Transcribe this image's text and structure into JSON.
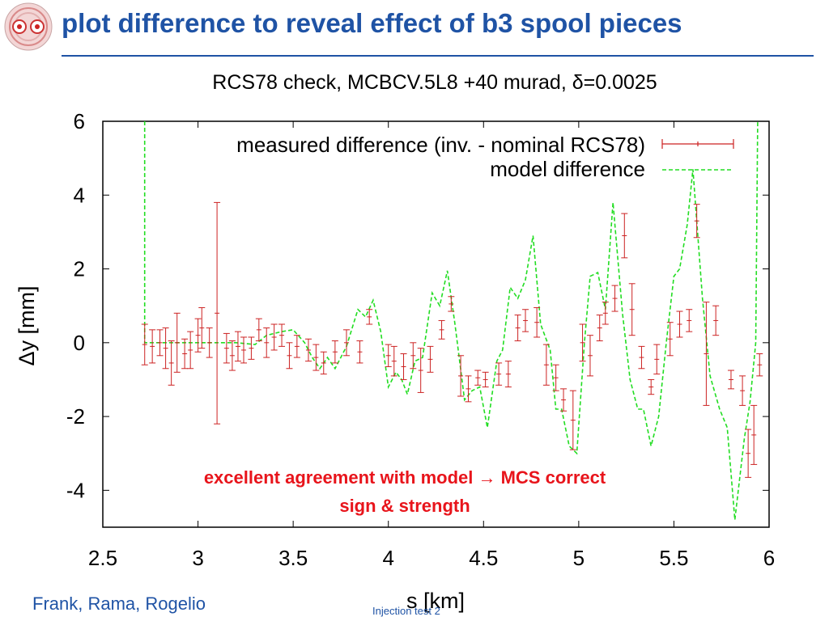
{
  "slide": {
    "title": "plot difference to reveal effect of b3 spool pieces",
    "authors": "Frank, Rama, Rogelio",
    "footer": "Injection test 2"
  },
  "logo": {
    "icon": "lhc-magnet-cross-section-icon"
  },
  "colors": {
    "title": "#1f53a5",
    "measured": "#cc2222",
    "model": "#22dd22",
    "annotation": "#e8141b"
  },
  "annotation": {
    "line1": "excellent agreement with model → MCS correct",
    "line2": "sign & strength"
  },
  "chart_data": {
    "type": "line",
    "title": "RCS78 check, MCBCV.5L8 +40 murad, δ=0.0025",
    "xlabel": "s [km]",
    "ylabel": "Δy [mm]",
    "xlim": [
      2.5,
      6
    ],
    "ylim": [
      -5,
      6
    ],
    "xticks": [
      "2.5",
      "3",
      "3.5",
      "4",
      "4.5",
      "5",
      "5.5",
      "6"
    ],
    "yticks": [
      "6",
      "4",
      "2",
      "0",
      "-2",
      "-4"
    ],
    "legend_position": "top-right",
    "series": [
      {
        "name": "measured difference (inv. - nominal RCS78)",
        "style": "errorbar",
        "color": "#cc2222",
        "points": [
          [
            2.72,
            -0.05,
            0.55
          ],
          [
            2.76,
            -0.1,
            0.45
          ],
          [
            2.8,
            0.0,
            0.35
          ],
          [
            2.83,
            -0.15,
            0.55
          ],
          [
            2.86,
            -0.55,
            0.6
          ],
          [
            2.89,
            0.0,
            0.8
          ],
          [
            2.93,
            -0.3,
            0.4
          ],
          [
            2.96,
            -0.2,
            0.5
          ],
          [
            3.0,
            0.2,
            0.45
          ],
          [
            3.02,
            0.4,
            0.55
          ],
          [
            3.06,
            0.0,
            0.4
          ],
          [
            3.1,
            0.8,
            3.0
          ],
          [
            3.15,
            -0.15,
            0.4
          ],
          [
            3.18,
            -0.35,
            0.4
          ],
          [
            3.21,
            -0.1,
            0.4
          ],
          [
            3.24,
            -0.2,
            0.35
          ],
          [
            3.28,
            -0.15,
            0.3
          ],
          [
            3.32,
            0.35,
            0.3
          ],
          [
            3.36,
            0.0,
            0.4
          ],
          [
            3.4,
            0.15,
            0.35
          ],
          [
            3.44,
            0.2,
            0.3
          ],
          [
            3.48,
            -0.35,
            0.35
          ],
          [
            3.52,
            -0.1,
            0.3
          ],
          [
            3.58,
            -0.2,
            0.3
          ],
          [
            3.62,
            -0.4,
            0.35
          ],
          [
            3.66,
            -0.55,
            0.3
          ],
          [
            3.72,
            -0.25,
            0.3
          ],
          [
            3.78,
            0.0,
            0.35
          ],
          [
            3.85,
            -0.25,
            0.3
          ],
          [
            3.9,
            0.7,
            0.2
          ],
          [
            4.0,
            -0.35,
            0.3
          ],
          [
            4.03,
            -0.5,
            0.4
          ],
          [
            4.08,
            -0.65,
            0.35
          ],
          [
            4.13,
            -0.35,
            0.35
          ],
          [
            4.17,
            -0.75,
            0.6
          ],
          [
            4.22,
            -0.45,
            0.35
          ],
          [
            4.28,
            0.35,
            0.25
          ],
          [
            4.33,
            1.05,
            0.2
          ],
          [
            4.38,
            -0.9,
            0.55
          ],
          [
            4.42,
            -1.25,
            0.35
          ],
          [
            4.47,
            -0.95,
            0.2
          ],
          [
            4.51,
            -1.0,
            0.2
          ],
          [
            4.58,
            -0.85,
            0.3
          ],
          [
            4.63,
            -0.85,
            0.35
          ],
          [
            4.68,
            0.4,
            0.35
          ],
          [
            4.72,
            0.6,
            0.3
          ],
          [
            4.78,
            0.55,
            0.4
          ],
          [
            4.83,
            -0.6,
            0.55
          ],
          [
            4.88,
            -0.95,
            0.35
          ],
          [
            4.92,
            -1.55,
            0.3
          ],
          [
            4.97,
            -2.1,
            0.8
          ],
          [
            5.02,
            0.0,
            0.5
          ],
          [
            5.06,
            -0.35,
            0.55
          ],
          [
            5.11,
            0.4,
            0.35
          ],
          [
            5.14,
            0.8,
            0.3
          ],
          [
            5.19,
            1.2,
            0.35
          ],
          [
            5.24,
            2.9,
            0.6
          ],
          [
            5.28,
            0.9,
            0.7
          ],
          [
            5.33,
            -0.4,
            0.3
          ],
          [
            5.38,
            -1.2,
            0.2
          ],
          [
            5.41,
            -0.45,
            0.4
          ],
          [
            5.48,
            0.1,
            0.45
          ],
          [
            5.53,
            0.5,
            0.35
          ],
          [
            5.58,
            0.6,
            0.3
          ],
          [
            5.62,
            3.3,
            0.45
          ],
          [
            5.67,
            -0.3,
            1.4
          ],
          [
            5.72,
            0.6,
            0.4
          ],
          [
            5.8,
            -1.0,
            0.25
          ],
          [
            5.86,
            -1.3,
            0.4
          ],
          [
            5.89,
            -3.0,
            0.65
          ],
          [
            5.92,
            -2.5,
            0.8
          ],
          [
            5.95,
            -0.6,
            0.3
          ]
        ]
      },
      {
        "name": "model difference",
        "style": "dashed-line",
        "color": "#22dd22",
        "points": [
          [
            2.72,
            6.0
          ],
          [
            2.72,
            0.0
          ],
          [
            3.0,
            0.0
          ],
          [
            3.2,
            0.0
          ],
          [
            3.3,
            -0.05
          ],
          [
            3.36,
            0.2
          ],
          [
            3.44,
            0.3
          ],
          [
            3.5,
            0.35
          ],
          [
            3.56,
            0.0
          ],
          [
            3.6,
            -0.4
          ],
          [
            3.64,
            -0.7
          ],
          [
            3.68,
            -0.4
          ],
          [
            3.72,
            -0.7
          ],
          [
            3.78,
            -0.1
          ],
          [
            3.84,
            0.9
          ],
          [
            3.88,
            0.7
          ],
          [
            3.92,
            1.15
          ],
          [
            3.96,
            0.3
          ],
          [
            4.0,
            -1.2
          ],
          [
            4.04,
            -0.8
          ],
          [
            4.07,
            -1.0
          ],
          [
            4.1,
            -1.4
          ],
          [
            4.14,
            -0.5
          ],
          [
            4.18,
            -0.4
          ],
          [
            4.23,
            1.35
          ],
          [
            4.27,
            1.0
          ],
          [
            4.31,
            1.95
          ],
          [
            4.35,
            0.5
          ],
          [
            4.4,
            -1.55
          ],
          [
            4.44,
            -1.3
          ],
          [
            4.48,
            -1.2
          ],
          [
            4.52,
            -2.3
          ],
          [
            4.57,
            -0.5
          ],
          [
            4.6,
            -0.2
          ],
          [
            4.64,
            1.5
          ],
          [
            4.68,
            1.2
          ],
          [
            4.72,
            1.7
          ],
          [
            4.76,
            2.9
          ],
          [
            4.8,
            0.5
          ],
          [
            4.85,
            -0.2
          ],
          [
            4.88,
            -1.8
          ],
          [
            4.91,
            -1.8
          ],
          [
            4.95,
            -2.8
          ],
          [
            4.99,
            -3.0
          ],
          [
            5.03,
            0.0
          ],
          [
            5.06,
            1.8
          ],
          [
            5.1,
            1.9
          ],
          [
            5.14,
            0.9
          ],
          [
            5.18,
            3.8
          ],
          [
            5.23,
            0.8
          ],
          [
            5.27,
            -1.0
          ],
          [
            5.31,
            -1.8
          ],
          [
            5.34,
            -1.8
          ],
          [
            5.38,
            -2.8
          ],
          [
            5.42,
            -2.0
          ],
          [
            5.46,
            0.0
          ],
          [
            5.5,
            1.8
          ],
          [
            5.53,
            2.0
          ],
          [
            5.57,
            3.2
          ],
          [
            5.6,
            4.7
          ],
          [
            5.65,
            1.2
          ],
          [
            5.69,
            -0.9
          ],
          [
            5.74,
            -1.8
          ],
          [
            5.78,
            -2.3
          ],
          [
            5.82,
            -4.8
          ],
          [
            5.87,
            -2.6
          ],
          [
            5.9,
            -1.6
          ],
          [
            5.93,
            0.0
          ],
          [
            5.94,
            6.0
          ]
        ]
      }
    ]
  }
}
